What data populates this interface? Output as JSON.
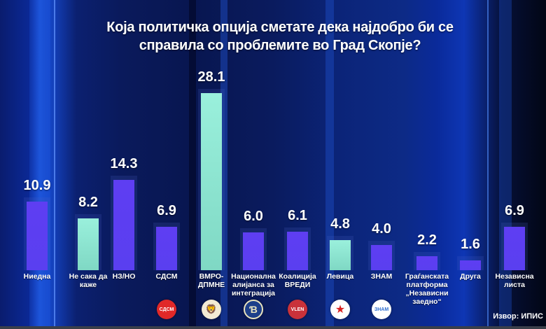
{
  "title": {
    "line1": "Која политичка опција сметате дека најдобро би се",
    "line2": "справила со проблемите во Град Скопје?"
  },
  "source": "Извор: ИПИС",
  "colors": {
    "purple_bar": "#5b3ff0",
    "teal_bar": "#8ee8d4",
    "background": "#0a1b5e"
  },
  "logos": [
    {
      "name": "sdsm-logo",
      "text": "СДСМ",
      "bg": "#e02828",
      "fg": "#ffffff"
    },
    {
      "name": "vmro-dpmne-logo",
      "text": "🦁",
      "bg": "#f3ead4",
      "fg": "#d63a1a"
    },
    {
      "name": "alliance-logo",
      "text": "Ɓ",
      "bg": "#1d3f8a",
      "fg": "#e8e3c0"
    },
    {
      "name": "vlen-logo",
      "text": "VLEN",
      "bg": "#c9323a",
      "fg": "#ffffff"
    },
    {
      "name": "levica-logo",
      "text": "★",
      "bg": "#ffffff",
      "fg": "#d82020"
    },
    {
      "name": "znam-logo",
      "text": "ЗНАМ",
      "bg": "#ffffff",
      "fg": "#2f6fd0"
    }
  ],
  "chart_data": {
    "type": "bar",
    "title": "Која политичка опција сметате дека најдобро би се справила со проблемите во Град Скопје?",
    "xlabel": "",
    "ylabel": "",
    "ylim": [
      0,
      30
    ],
    "grid": false,
    "legend": "none",
    "categories": [
      "Ниедна",
      "Не сака да каже",
      "НЗ/НО",
      "СДСМ",
      "ВМРО-ДПМНЕ",
      "Национална алијанса за интеграција",
      "Коалиција ВРЕДИ",
      "Левица",
      "ЗНАМ",
      "Граѓанската платформа „Независни заедно“",
      "Друга",
      "Независна листа"
    ],
    "values": [
      10.9,
      8.2,
      14.3,
      6.9,
      28.1,
      6.0,
      6.1,
      4.8,
      4.0,
      2.2,
      1.6,
      6.9
    ],
    "value_labels": [
      "10.9",
      "8.2",
      "14.3",
      "6.9",
      "28.1",
      "6.0",
      "6.1",
      "4.8",
      "4.0",
      "2.2",
      "1.6",
      "6.9"
    ],
    "bar_colors": [
      "#5b3ff0",
      "#8ee8d4",
      "#5b3ff0",
      "#5b3ff0",
      "#8ee8d4",
      "#5b3ff0",
      "#5b3ff0",
      "#8ee8d4",
      "#5b3ff0",
      "#5b3ff0",
      "#5b3ff0",
      "#5b3ff0"
    ],
    "label_lines": [
      [
        "Ниедна"
      ],
      [
        "Не сака да",
        "каже"
      ],
      [
        "НЗ/НО"
      ],
      [
        "СДСМ"
      ],
      [
        "ВМРО-",
        "ДПМНЕ"
      ],
      [
        "Национална",
        "алијанса за",
        "интеграција"
      ],
      [
        "Коалиција",
        "ВРЕДИ"
      ],
      [
        "Левица"
      ],
      [
        "ЗНАМ"
      ],
      [
        "Граѓанската",
        "платформа",
        "„Независни",
        "заедно“"
      ],
      [
        "Друга"
      ],
      [
        "Независна",
        "листа"
      ]
    ],
    "source": "Извор: ИПИС"
  }
}
